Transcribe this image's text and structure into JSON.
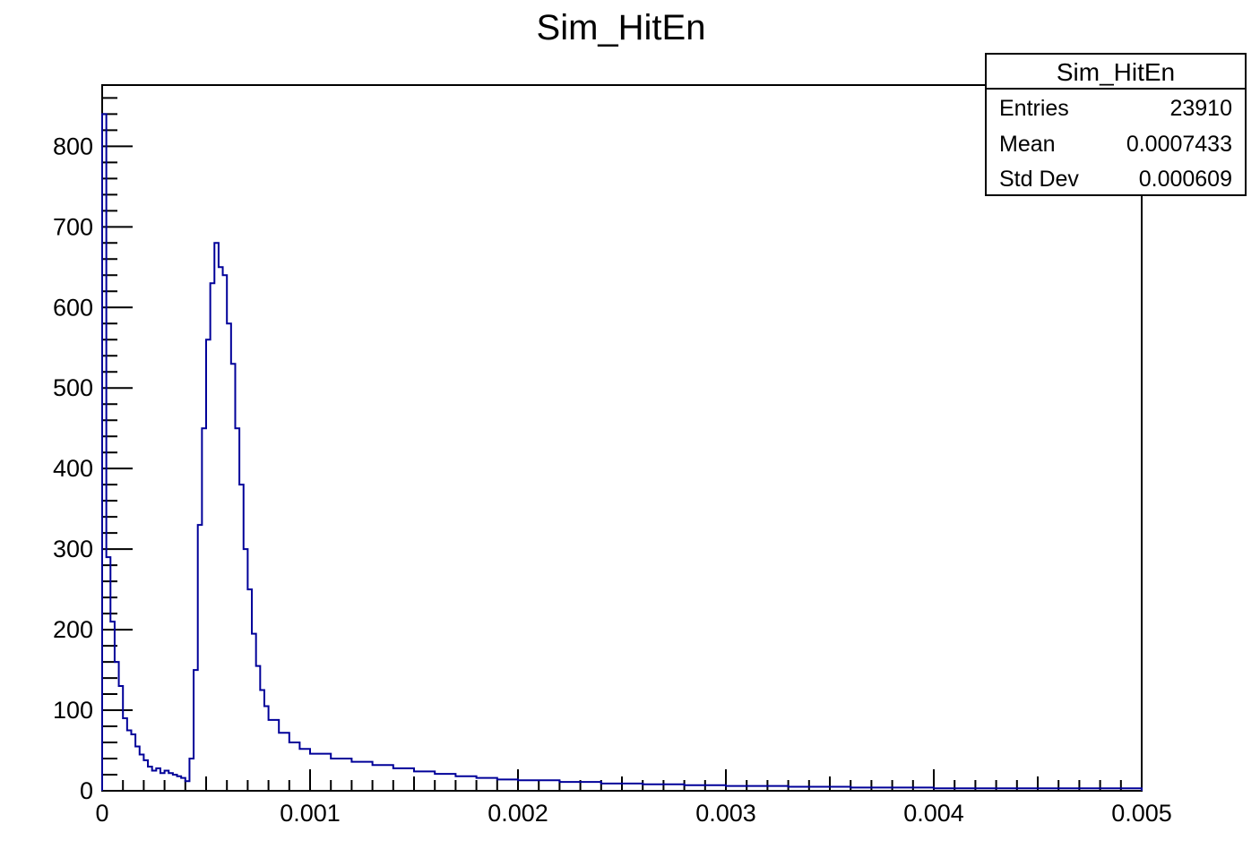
{
  "chart_data": {
    "type": "bar",
    "title": "Sim_HitEn",
    "xlabel": "",
    "ylabel": "",
    "xlim": [
      0,
      0.005
    ],
    "ylim": [
      0,
      876
    ],
    "x_ticks": [
      {
        "value": 0,
        "label": "0"
      },
      {
        "value": 0.001,
        "label": "0.001"
      },
      {
        "value": 0.002,
        "label": "0.002"
      },
      {
        "value": 0.003,
        "label": "0.003"
      },
      {
        "value": 0.004,
        "label": "0.004"
      },
      {
        "value": 0.005,
        "label": "0.005"
      }
    ],
    "y_ticks": [
      {
        "value": 0,
        "label": "0"
      },
      {
        "value": 100,
        "label": "100"
      },
      {
        "value": 200,
        "label": "200"
      },
      {
        "value": 300,
        "label": "300"
      },
      {
        "value": 400,
        "label": "400"
      },
      {
        "value": 500,
        "label": "500"
      },
      {
        "value": 600,
        "label": "600"
      },
      {
        "value": 700,
        "label": "700"
      },
      {
        "value": 800,
        "label": "800"
      }
    ],
    "series_color": "#000099",
    "histogram_points": [
      [
        0.0,
        840
      ],
      [
        2e-05,
        290
      ],
      [
        4e-05,
        210
      ],
      [
        6e-05,
        160
      ],
      [
        8e-05,
        130
      ],
      [
        0.0001,
        90
      ],
      [
        0.00012,
        75
      ],
      [
        0.00014,
        70
      ],
      [
        0.00016,
        55
      ],
      [
        0.00018,
        45
      ],
      [
        0.0002,
        38
      ],
      [
        0.00022,
        30
      ],
      [
        0.00024,
        25
      ],
      [
        0.00026,
        28
      ],
      [
        0.00028,
        22
      ],
      [
        0.0003,
        25
      ],
      [
        0.00032,
        22
      ],
      [
        0.00034,
        20
      ],
      [
        0.00036,
        18
      ],
      [
        0.00038,
        16
      ],
      [
        0.0004,
        12
      ],
      [
        0.00042,
        40
      ],
      [
        0.00044,
        150
      ],
      [
        0.00046,
        330
      ],
      [
        0.00048,
        450
      ],
      [
        0.0005,
        560
      ],
      [
        0.00052,
        630
      ],
      [
        0.00054,
        680
      ],
      [
        0.00056,
        650
      ],
      [
        0.00058,
        640
      ],
      [
        0.0006,
        580
      ],
      [
        0.00062,
        530
      ],
      [
        0.00064,
        450
      ],
      [
        0.00066,
        380
      ],
      [
        0.00068,
        300
      ],
      [
        0.0007,
        250
      ],
      [
        0.00072,
        195
      ],
      [
        0.00074,
        155
      ],
      [
        0.00076,
        125
      ],
      [
        0.00078,
        105
      ],
      [
        0.0008,
        88
      ],
      [
        0.00085,
        72
      ],
      [
        0.0009,
        60
      ],
      [
        0.00095,
        52
      ],
      [
        0.001,
        46
      ],
      [
        0.0011,
        40
      ],
      [
        0.0012,
        36
      ],
      [
        0.0013,
        32
      ],
      [
        0.0014,
        28
      ],
      [
        0.0015,
        24
      ],
      [
        0.0016,
        21
      ],
      [
        0.0017,
        18
      ],
      [
        0.0018,
        16
      ],
      [
        0.0019,
        14
      ],
      [
        0.002,
        13
      ],
      [
        0.0022,
        11
      ],
      [
        0.0024,
        9
      ],
      [
        0.0026,
        8
      ],
      [
        0.0028,
        7
      ],
      [
        0.003,
        6
      ],
      [
        0.0033,
        5
      ],
      [
        0.0036,
        4
      ],
      [
        0.004,
        3
      ],
      [
        0.0045,
        3
      ],
      [
        0.005,
        2
      ]
    ],
    "stats_box": {
      "title": "Sim_HitEn",
      "rows": [
        {
          "label": "Entries",
          "value": "23910"
        },
        {
          "label": "Mean",
          "value": "0.0007433"
        },
        {
          "label": "Std Dev",
          "value": "0.000609"
        }
      ]
    }
  }
}
